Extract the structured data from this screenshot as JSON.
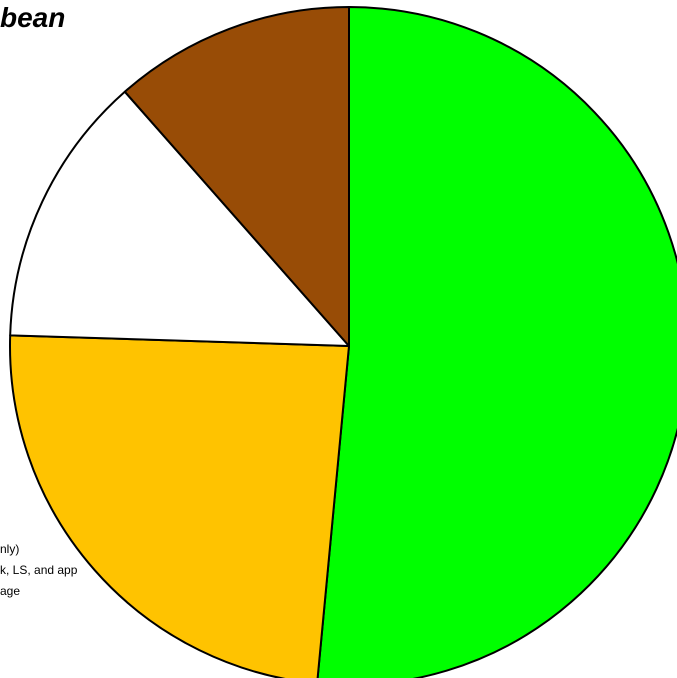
{
  "chart_data": {
    "type": "pie",
    "title": "bean",
    "start_angle_deg": 0,
    "direction": "clockwise",
    "slices": [
      {
        "label": "",
        "value": 51.5,
        "color": "#00FF00"
      },
      {
        "label": "",
        "value": 24.0,
        "color": "#FFC300"
      },
      {
        "label": "",
        "value": 13.0,
        "color": "#FFFFFF"
      },
      {
        "label": "",
        "value": 11.5,
        "color": "#984C06"
      }
    ],
    "legend_fragments": [
      "nly)",
      "k, LS, and app",
      "age"
    ]
  }
}
